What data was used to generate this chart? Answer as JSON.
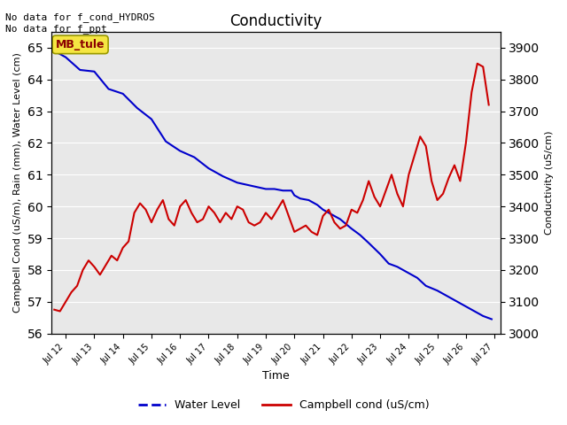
{
  "title": "Conductivity",
  "xlabel": "Time",
  "ylabel_left": "Campbell Cond (uS/m), Rain (mm), Water Level (cm)",
  "ylabel_right": "Conductivity (uS/cm)",
  "annotation_text": "No data for f_cond_HYDROS\nNo data for f_ppt",
  "legend_label_blue": "Water Level",
  "legend_label_red": "Campbell cond (uS/cm)",
  "station_label": "MB_tule",
  "xlim_days": [
    11.5,
    27.2
  ],
  "ylim_left": [
    56.0,
    65.5
  ],
  "ylim_right": [
    3000,
    3950
  ],
  "bg_color": "#e8e8e8",
  "blue_color": "#0000cc",
  "red_color": "#cc0000",
  "x_ticks": [
    12,
    13,
    14,
    15,
    16,
    17,
    18,
    19,
    20,
    21,
    22,
    23,
    24,
    25,
    26,
    27
  ],
  "x_tick_labels": [
    "Jul 12",
    "Jul 13",
    "Jul 14",
    "Jul 15",
    "Jul 16",
    "Jul 17",
    "Jul 18",
    "Jul 19",
    "Jul 20",
    "Jul 21",
    "Jul 22",
    "Jul 23",
    "Jul 24",
    "Jul 25",
    "Jul 26",
    "Jul 27"
  ],
  "y_ticks_left": [
    56.0,
    57.0,
    58.0,
    59.0,
    60.0,
    61.0,
    62.0,
    63.0,
    64.0,
    65.0
  ],
  "y_ticks_right": [
    3000,
    3100,
    3200,
    3300,
    3400,
    3500,
    3600,
    3700,
    3800,
    3900
  ],
  "water_level_x": [
    11.5,
    12.0,
    12.5,
    13.0,
    13.5,
    14.0,
    14.5,
    15.0,
    15.5,
    16.0,
    16.5,
    17.0,
    17.5,
    18.0,
    18.5,
    19.0,
    19.3,
    19.6,
    19.9,
    20.0,
    20.2,
    20.5,
    20.8,
    21.0,
    21.3,
    21.6,
    22.0,
    22.3,
    22.6,
    23.0,
    23.3,
    23.6,
    24.0,
    24.3,
    24.6,
    25.0,
    25.3,
    25.6,
    26.0,
    26.3,
    26.6,
    26.9
  ],
  "water_level_y": [
    64.95,
    64.7,
    64.3,
    64.25,
    63.7,
    63.55,
    63.1,
    62.75,
    62.05,
    61.75,
    61.55,
    61.2,
    60.95,
    60.75,
    60.65,
    60.55,
    60.55,
    60.5,
    60.5,
    60.35,
    60.25,
    60.2,
    60.05,
    59.9,
    59.75,
    59.6,
    59.3,
    59.1,
    58.85,
    58.5,
    58.2,
    58.1,
    57.9,
    57.75,
    57.5,
    57.35,
    57.2,
    57.05,
    56.85,
    56.7,
    56.55,
    56.45
  ],
  "campbell_x": [
    11.6,
    11.8,
    12.0,
    12.2,
    12.4,
    12.6,
    12.8,
    13.0,
    13.2,
    13.4,
    13.6,
    13.8,
    14.0,
    14.2,
    14.4,
    14.6,
    14.8,
    15.0,
    15.2,
    15.4,
    15.6,
    15.8,
    16.0,
    16.2,
    16.4,
    16.6,
    16.8,
    17.0,
    17.2,
    17.4,
    17.6,
    17.8,
    18.0,
    18.2,
    18.4,
    18.6,
    18.8,
    19.0,
    19.2,
    19.4,
    19.6,
    19.8,
    20.0,
    20.2,
    20.4,
    20.6,
    20.8,
    21.0,
    21.2,
    21.4,
    21.6,
    21.8,
    22.0,
    22.2,
    22.4,
    22.6,
    22.8,
    23.0,
    23.2,
    23.4,
    23.6,
    23.8,
    24.0,
    24.2,
    24.4,
    24.6,
    24.8,
    25.0,
    25.2,
    25.4,
    25.6,
    25.8,
    26.0,
    26.2,
    26.4,
    26.6,
    26.8
  ],
  "campbell_y": [
    3075,
    3070,
    3100,
    3130,
    3150,
    3200,
    3230,
    3210,
    3185,
    3215,
    3245,
    3230,
    3270,
    3290,
    3380,
    3410,
    3390,
    3350,
    3390,
    3420,
    3360,
    3340,
    3400,
    3420,
    3380,
    3350,
    3360,
    3400,
    3380,
    3350,
    3380,
    3360,
    3400,
    3390,
    3350,
    3340,
    3350,
    3380,
    3360,
    3390,
    3420,
    3370,
    3320,
    3330,
    3340,
    3320,
    3310,
    3370,
    3390,
    3350,
    3330,
    3340,
    3390,
    3380,
    3420,
    3480,
    3430,
    3400,
    3450,
    3500,
    3440,
    3400,
    3500,
    3560,
    3620,
    3590,
    3480,
    3420,
    3440,
    3490,
    3530,
    3480,
    3600,
    3760,
    3850,
    3840,
    3720
  ]
}
